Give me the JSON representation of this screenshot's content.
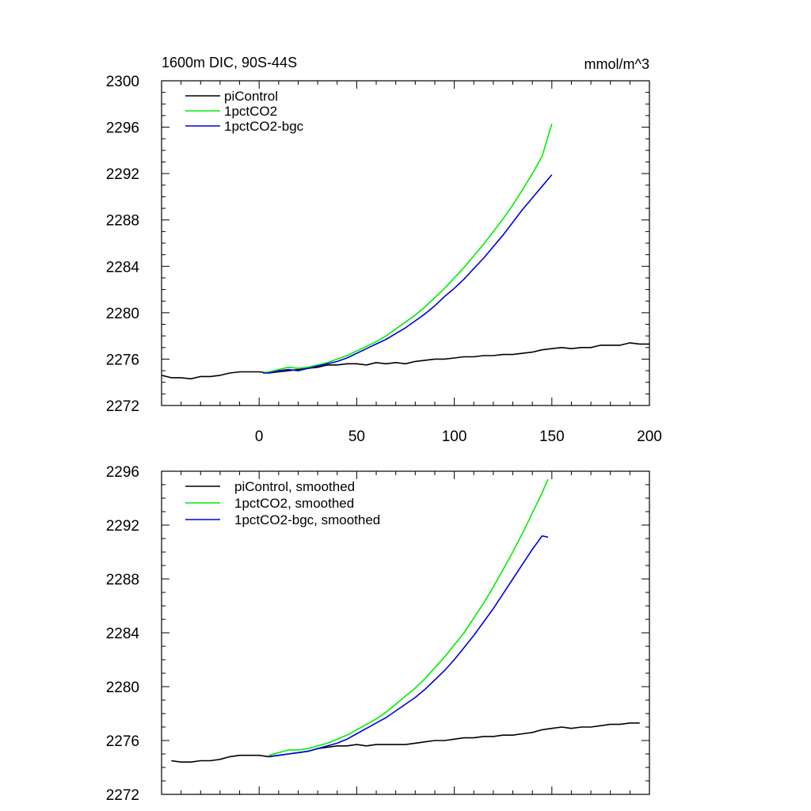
{
  "chart_data": [
    {
      "type": "line",
      "title": "1600m DIC, 90S-44S",
      "units": "mmol/m^3",
      "xlim": [
        -50,
        200
      ],
      "ylim": [
        2272,
        2300
      ],
      "xticks": [
        0,
        50,
        100,
        150,
        200
      ],
      "xtick_labels": [
        "0",
        "50",
        "100",
        "150",
        "200"
      ],
      "yticks": [
        2272,
        2276,
        2280,
        2284,
        2288,
        2292,
        2296,
        2300
      ],
      "ytick_labels": [
        "2272",
        "2276",
        "2280",
        "2284",
        "2288",
        "2292",
        "2296",
        "2300"
      ],
      "legend": "top-left",
      "series": [
        {
          "name": "piControl",
          "color": "#000000",
          "x": [
            -50,
            -45,
            -40,
            -35,
            -30,
            -25,
            -20,
            -15,
            -10,
            -5,
            0,
            5,
            10,
            15,
            20,
            25,
            30,
            35,
            40,
            45,
            50,
            55,
            60,
            65,
            70,
            75,
            80,
            85,
            90,
            95,
            100,
            105,
            110,
            115,
            120,
            125,
            130,
            135,
            140,
            145,
            150,
            155,
            160,
            165,
            170,
            175,
            180,
            185,
            190,
            195,
            200
          ],
          "y": [
            2274.6,
            2274.4,
            2274.4,
            2274.3,
            2274.5,
            2274.5,
            2274.6,
            2274.8,
            2274.9,
            2274.9,
            2274.9,
            2274.8,
            2274.9,
            2275.0,
            2275.1,
            2275.2,
            2275.3,
            2275.5,
            2275.5,
            2275.6,
            2275.6,
            2275.5,
            2275.7,
            2275.6,
            2275.7,
            2275.6,
            2275.8,
            2275.9,
            2276.0,
            2276.0,
            2276.1,
            2276.2,
            2276.2,
            2276.3,
            2276.3,
            2276.4,
            2276.4,
            2276.5,
            2276.6,
            2276.8,
            2276.9,
            2277.0,
            2276.9,
            2277.0,
            2277.0,
            2277.2,
            2277.2,
            2277.2,
            2277.4,
            2277.3,
            2277.3
          ]
        },
        {
          "name": "1pctCO2",
          "color": "#00ee00",
          "x": [
            2,
            5,
            10,
            15,
            20,
            25,
            30,
            35,
            40,
            45,
            50,
            55,
            60,
            65,
            70,
            75,
            80,
            85,
            90,
            95,
            100,
            105,
            110,
            115,
            120,
            125,
            130,
            135,
            140,
            145,
            150
          ],
          "y": [
            2274.8,
            2274.9,
            2275.1,
            2275.3,
            2275.2,
            2275.3,
            2275.5,
            2275.7,
            2276.0,
            2276.3,
            2276.7,
            2277.1,
            2277.5,
            2278.0,
            2278.6,
            2279.2,
            2279.8,
            2280.5,
            2281.3,
            2282.1,
            2283.0,
            2283.9,
            2284.9,
            2285.9,
            2287.0,
            2288.1,
            2289.3,
            2290.6,
            2292.0,
            2293.5,
            2296.3
          ]
        },
        {
          "name": "1pctCO2-bgc",
          "color": "#0000dd",
          "x": [
            2,
            5,
            10,
            15,
            20,
            25,
            30,
            35,
            40,
            45,
            50,
            55,
            60,
            65,
            70,
            75,
            80,
            85,
            90,
            95,
            100,
            105,
            110,
            115,
            120,
            125,
            130,
            135,
            140,
            145,
            150
          ],
          "y": [
            2274.8,
            2274.8,
            2275.0,
            2275.1,
            2275.0,
            2275.2,
            2275.4,
            2275.6,
            2275.8,
            2276.1,
            2276.5,
            2276.9,
            2277.3,
            2277.7,
            2278.2,
            2278.7,
            2279.3,
            2279.9,
            2280.6,
            2281.4,
            2282.1,
            2282.9,
            2283.8,
            2284.7,
            2285.7,
            2286.7,
            2287.8,
            2288.9,
            2289.9,
            2290.9,
            2291.9
          ]
        }
      ]
    },
    {
      "type": "line",
      "title": "",
      "xlim": [
        -50,
        200
      ],
      "ylim": [
        2272,
        2296
      ],
      "xticks": [
        0,
        50,
        100,
        150,
        200
      ],
      "xtick_labels": [],
      "yticks": [
        2272,
        2276,
        2280,
        2284,
        2288,
        2292,
        2296
      ],
      "ytick_labels": [
        "2272",
        "2276",
        "2280",
        "2284",
        "2288",
        "2292",
        "2296"
      ],
      "legend": "top-left",
      "series": [
        {
          "name": "piControl, smoothed",
          "color": "#000000",
          "x": [
            -45,
            -40,
            -35,
            -30,
            -25,
            -20,
            -15,
            -10,
            -5,
            0,
            5,
            10,
            15,
            20,
            25,
            30,
            35,
            40,
            45,
            50,
            55,
            60,
            65,
            70,
            75,
            80,
            85,
            90,
            95,
            100,
            105,
            110,
            115,
            120,
            125,
            130,
            135,
            140,
            145,
            150,
            155,
            160,
            165,
            170,
            175,
            180,
            185,
            190,
            195
          ],
          "y": [
            2274.5,
            2274.4,
            2274.4,
            2274.5,
            2274.5,
            2274.6,
            2274.8,
            2274.9,
            2274.9,
            2274.9,
            2274.8,
            2274.9,
            2275.0,
            2275.1,
            2275.2,
            2275.4,
            2275.5,
            2275.6,
            2275.6,
            2275.7,
            2275.6,
            2275.7,
            2275.7,
            2275.7,
            2275.7,
            2275.8,
            2275.9,
            2276.0,
            2276.0,
            2276.1,
            2276.2,
            2276.2,
            2276.3,
            2276.3,
            2276.4,
            2276.4,
            2276.5,
            2276.6,
            2276.8,
            2276.9,
            2277.0,
            2276.9,
            2277.0,
            2277.0,
            2277.1,
            2277.2,
            2277.2,
            2277.3,
            2277.3
          ]
        },
        {
          "name": "1pctCO2, smoothed",
          "color": "#00ee00",
          "x": [
            5,
            10,
            15,
            20,
            25,
            30,
            35,
            40,
            45,
            50,
            55,
            60,
            65,
            70,
            75,
            80,
            85,
            90,
            95,
            100,
            105,
            110,
            115,
            120,
            125,
            130,
            135,
            140,
            145,
            148
          ],
          "y": [
            2274.9,
            2275.1,
            2275.3,
            2275.3,
            2275.4,
            2275.6,
            2275.8,
            2276.1,
            2276.4,
            2276.8,
            2277.2,
            2277.6,
            2278.1,
            2278.7,
            2279.3,
            2279.9,
            2280.6,
            2281.4,
            2282.2,
            2283.1,
            2284.0,
            2285.1,
            2286.2,
            2287.4,
            2288.7,
            2290.0,
            2291.4,
            2292.9,
            2294.4,
            2295.4
          ]
        },
        {
          "name": "1pctCO2-bgc, smoothed",
          "color": "#0000dd",
          "x": [
            5,
            10,
            15,
            20,
            25,
            30,
            35,
            40,
            45,
            50,
            55,
            60,
            65,
            70,
            75,
            80,
            85,
            90,
            95,
            100,
            105,
            110,
            115,
            120,
            125,
            130,
            135,
            140,
            145,
            148
          ],
          "y": [
            2274.8,
            2274.9,
            2275.0,
            2275.1,
            2275.2,
            2275.4,
            2275.6,
            2275.8,
            2276.1,
            2276.5,
            2276.9,
            2277.3,
            2277.7,
            2278.2,
            2278.7,
            2279.2,
            2279.8,
            2280.5,
            2281.2,
            2282.0,
            2282.9,
            2283.8,
            2284.8,
            2285.8,
            2286.9,
            2288.0,
            2289.1,
            2290.2,
            2291.2,
            2291.1
          ]
        }
      ]
    }
  ]
}
